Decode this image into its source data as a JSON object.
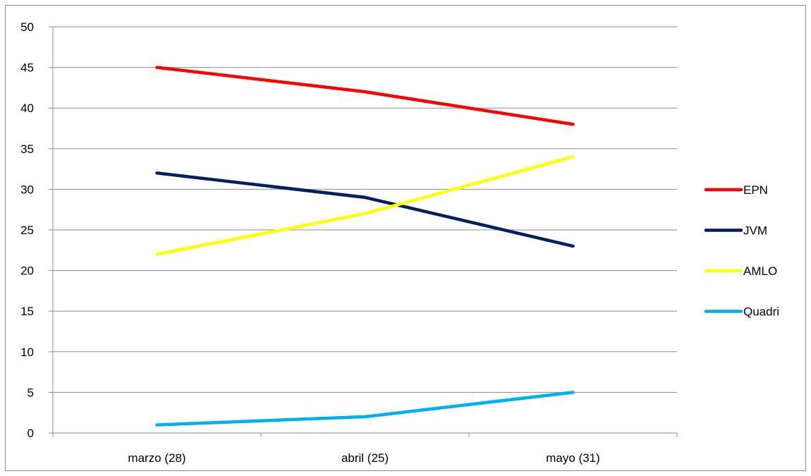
{
  "chart_data": {
    "type": "line",
    "title": "",
    "xlabel": "",
    "ylabel": "",
    "categories": [
      "marzo (28)",
      "abril (25)",
      "mayo (31)"
    ],
    "ylim": [
      0,
      50
    ],
    "y_ticks": [
      0,
      5,
      10,
      15,
      20,
      25,
      30,
      35,
      40,
      45,
      50
    ],
    "grid": true,
    "legend_position": "right",
    "series": [
      {
        "name": "EPN",
        "color": "#ff0000",
        "values": [
          45,
          42,
          38
        ]
      },
      {
        "name": "JVM",
        "color": "#002060",
        "values": [
          32,
          29,
          23
        ]
      },
      {
        "name": "AMLO",
        "color": "#ffff00",
        "values": [
          22,
          27,
          34
        ]
      },
      {
        "name": "Quadri",
        "color": "#00b0f0",
        "values": [
          1,
          2,
          5
        ]
      }
    ]
  }
}
